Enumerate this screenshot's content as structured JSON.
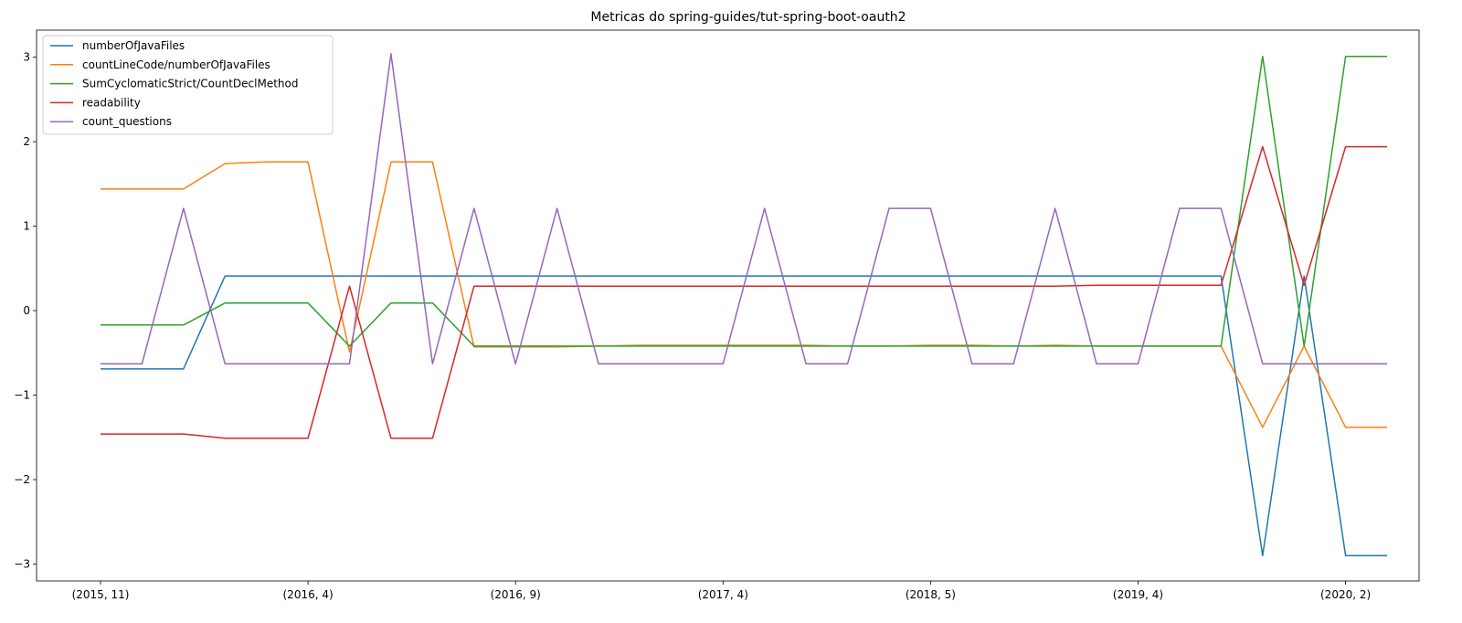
{
  "chart_data": {
    "type": "line",
    "title": "Metricas do spring-guides/tut-spring-boot-oauth2",
    "xlabel": "",
    "ylabel": "",
    "x_tick_labels": [
      "(2015, 11)",
      "(2016, 4)",
      "(2016, 9)",
      "(2017, 4)",
      "(2018, 5)",
      "(2019, 4)",
      "(2020, 2)"
    ],
    "x_tick_indices": [
      0,
      5,
      10,
      15,
      20,
      25,
      30
    ],
    "x_count": 32,
    "ylim": [
      -3.2,
      3.32
    ],
    "y_ticks": [
      -3,
      -2,
      -1,
      0,
      1,
      2,
      3
    ],
    "y_tick_labels": [
      "−3",
      "−2",
      "−1",
      "0",
      "1",
      "2",
      "3"
    ],
    "grid": false,
    "legend_position": "top-left",
    "series": [
      {
        "name": "numberOfJavaFiles",
        "color": "#1f77b4",
        "values": [
          -0.69,
          -0.69,
          -0.69,
          0.41,
          0.41,
          0.41,
          0.41,
          0.41,
          0.41,
          0.41,
          0.41,
          0.41,
          0.41,
          0.41,
          0.41,
          0.41,
          0.41,
          0.41,
          0.41,
          0.41,
          0.41,
          0.41,
          0.41,
          0.41,
          0.41,
          0.41,
          0.41,
          0.41,
          -2.9,
          0.41,
          -2.9,
          -2.9
        ]
      },
      {
        "name": "countLineCode/numberOfJavaFiles",
        "color": "#ff7f0e",
        "values": [
          1.44,
          1.44,
          1.44,
          1.74,
          1.76,
          1.76,
          -0.49,
          1.76,
          1.76,
          -0.43,
          -0.43,
          -0.43,
          -0.42,
          -0.41,
          -0.41,
          -0.41,
          -0.41,
          -0.41,
          -0.42,
          -0.42,
          -0.41,
          -0.41,
          -0.42,
          -0.41,
          -0.42,
          -0.42,
          -0.42,
          -0.42,
          -1.38,
          -0.42,
          -1.38,
          -1.38
        ]
      },
      {
        "name": "SumCyclomaticStrict/CountDeclMethod",
        "color": "#2ca02c",
        "values": [
          -0.17,
          -0.17,
          -0.17,
          0.09,
          0.09,
          0.09,
          -0.42,
          0.09,
          0.09,
          -0.42,
          -0.42,
          -0.42,
          -0.42,
          -0.42,
          -0.42,
          -0.42,
          -0.42,
          -0.42,
          -0.42,
          -0.42,
          -0.42,
          -0.42,
          -0.42,
          -0.42,
          -0.42,
          -0.42,
          -0.42,
          -0.42,
          3.01,
          -0.42,
          3.01,
          3.01
        ]
      },
      {
        "name": "readability",
        "color": "#d62728",
        "values": [
          -1.46,
          -1.46,
          -1.46,
          -1.51,
          -1.51,
          -1.51,
          0.29,
          -1.51,
          -1.51,
          0.29,
          0.29,
          0.29,
          0.29,
          0.29,
          0.29,
          0.29,
          0.29,
          0.29,
          0.29,
          0.29,
          0.29,
          0.29,
          0.29,
          0.29,
          0.3,
          0.3,
          0.3,
          0.3,
          1.94,
          0.3,
          1.94,
          1.94
        ]
      },
      {
        "name": "count_questions",
        "color": "#9467bd",
        "values": [
          -0.63,
          -0.63,
          1.21,
          -0.63,
          -0.63,
          -0.63,
          -0.63,
          3.04,
          -0.63,
          1.21,
          -0.63,
          1.21,
          -0.63,
          -0.63,
          -0.63,
          -0.63,
          1.21,
          -0.63,
          -0.63,
          1.21,
          1.21,
          -0.63,
          -0.63,
          1.21,
          -0.63,
          -0.63,
          1.21,
          1.21,
          -0.63,
          -0.63,
          -0.63,
          -0.63
        ]
      }
    ]
  }
}
